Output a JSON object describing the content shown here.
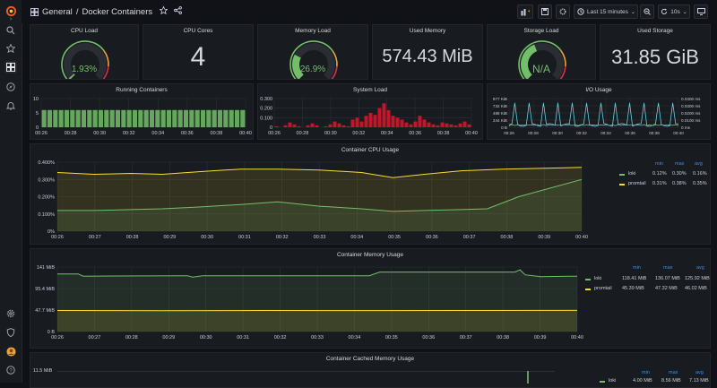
{
  "topbar": {
    "folder": "General",
    "separator": "/",
    "dashboard": "Docker Containers",
    "time_range": "Last 15 minutes",
    "refresh": "10s"
  },
  "stats": {
    "cpu_load": {
      "title": "CPU Load",
      "value": "1.93%",
      "percent": 1.93
    },
    "cpu_cores": {
      "title": "CPU Cores",
      "value": "4"
    },
    "memory_load": {
      "title": "Memory Load",
      "value": "26.9%",
      "percent": 26.9
    },
    "used_memory": {
      "title": "Used Memory",
      "value": "574.43 MiB"
    },
    "storage_load": {
      "title": "Storage Load",
      "value": "N/A"
    },
    "used_storage": {
      "title": "Used Storage",
      "value": "31.85 GiB"
    }
  },
  "colors": {
    "green": "#73bf69",
    "yellow": "#fade2a",
    "red": "#c4162a",
    "cyan": "#6ed0e0",
    "blue": "#3d8df7"
  },
  "running": {
    "title": "Running Containers",
    "y_ticks": [
      "10",
      "5",
      "0"
    ],
    "x_ticks": [
      "00:26",
      "00:28",
      "00:30",
      "00:32",
      "00:34",
      "00:36",
      "00:38",
      "00:40"
    ]
  },
  "sysload": {
    "title": "System Load",
    "y_ticks": [
      "0.300",
      "0.200",
      "0.100",
      "0"
    ],
    "x_ticks": [
      "00:26",
      "00:28",
      "00:30",
      "00:32",
      "00:34",
      "00:36",
      "00:38",
      "00:40"
    ]
  },
  "io": {
    "title": "I/O Usage",
    "y_ticks_left": [
      "977 KiB",
      "732 KiB",
      "488 KiB",
      "244 KiB",
      "0 B"
    ],
    "y_ticks_right": [
      "0.0400 ms",
      "0.0300 ms",
      "0.0200 ms",
      "0.0100 ms",
      "0 ms"
    ],
    "x_ticks": [
      "00:26",
      "00:28",
      "00:30",
      "00:32",
      "00:34",
      "00:36",
      "00:38",
      "00:40"
    ]
  },
  "cpu_usage": {
    "title": "Container CPU Usage",
    "y_ticks": [
      "0.400%",
      "0.300%",
      "0.200%",
      "0.100%",
      "0%"
    ],
    "x_ticks": [
      "00:26",
      "00:27",
      "00:28",
      "00:29",
      "00:30",
      "00:31",
      "00:32",
      "00:33",
      "00:34",
      "00:35",
      "00:36",
      "00:37",
      "00:38",
      "00:39",
      "00:40"
    ],
    "legend_headers": [
      "min",
      "max",
      "avg"
    ],
    "legend": [
      {
        "name": "loki",
        "min": "0.12%",
        "max": "0.30%",
        "avg": "0.16%",
        "color": "#73bf69"
      },
      {
        "name": "promtail",
        "min": "0.31%",
        "max": "0.38%",
        "avg": "0.35%",
        "color": "#fade2a"
      }
    ]
  },
  "mem_usage": {
    "title": "Container Memory Usage",
    "y_ticks": [
      "141 MiB",
      "95.4 MiB",
      "47.7 MiB",
      "0 B"
    ],
    "x_ticks": [
      "00:26",
      "00:27",
      "00:28",
      "00:29",
      "00:30",
      "00:31",
      "00:32",
      "00:33",
      "00:34",
      "00:35",
      "00:36",
      "00:37",
      "00:38",
      "00:39",
      "00:40"
    ],
    "legend_headers": [
      "min",
      "max",
      "avg"
    ],
    "legend": [
      {
        "name": "loki",
        "min": "118.41 MiB",
        "max": "136.07 MiB",
        "avg": "125.92 MiB",
        "color": "#73bf69"
      },
      {
        "name": "promtail",
        "min": "45.39 MiB",
        "max": "47.32 MiB",
        "avg": "46.02 MiB",
        "color": "#fade2a"
      }
    ]
  },
  "cache_usage": {
    "title": "Container Cached Memory Usage",
    "y_ticks": [
      "11.5 MiB"
    ],
    "legend_headers": [
      "min",
      "max",
      "avg"
    ],
    "legend": [
      {
        "name": "loki",
        "min": "4.00 MiB",
        "max": "8.56 MiB",
        "avg": "7.13 MiB",
        "color": "#73bf69"
      }
    ]
  },
  "icons": {
    "grafana": "grafana-logo-icon",
    "search": "search-icon",
    "starred": "star-icon",
    "dashboards": "dashboards-grid-icon",
    "explore": "compass-icon",
    "alerting": "bell-icon",
    "config": "gear-icon",
    "shield": "shield-icon",
    "help": "help-icon"
  }
}
